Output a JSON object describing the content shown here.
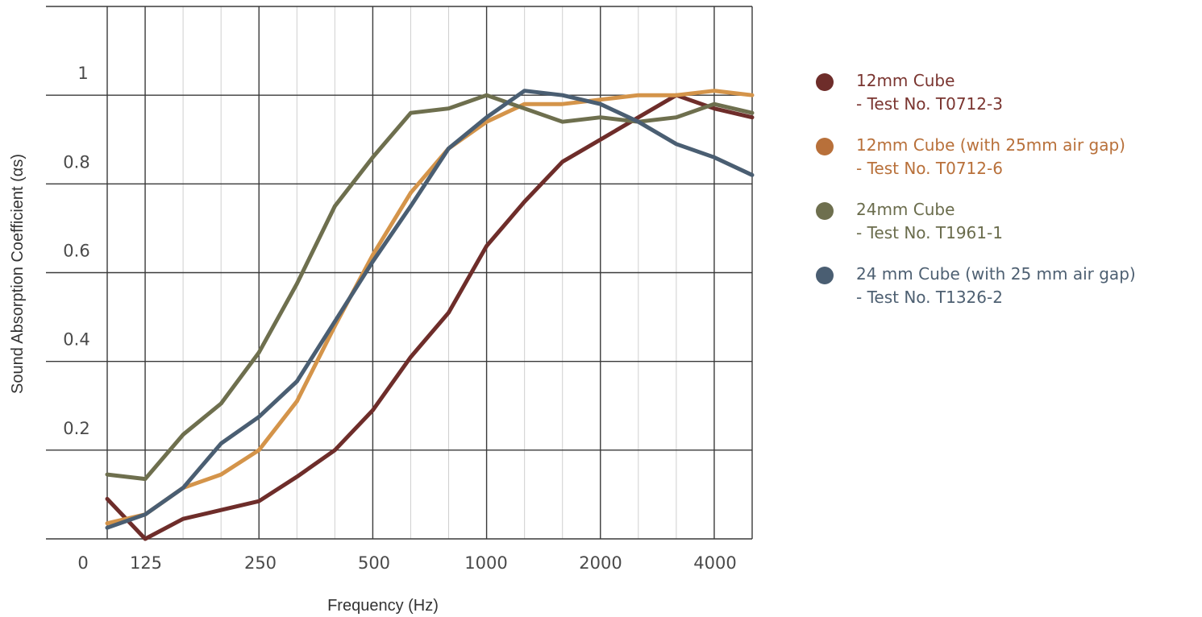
{
  "chart_data": {
    "type": "line",
    "title": "",
    "xlabel": "Frequency (Hz)",
    "ylabel": "Sound Absorption Coefficient (αs)",
    "x": [
      100,
      125,
      160,
      200,
      250,
      315,
      400,
      500,
      630,
      800,
      1000,
      1250,
      1600,
      2000,
      2500,
      3150,
      4000,
      5000
    ],
    "x_scale": "log (one-third octave bands)",
    "xticks": [
      "0",
      "125",
      "250",
      "500",
      "1000",
      "2000",
      "4000"
    ],
    "yticks": [
      "0.2",
      "0.4",
      "0.6",
      "0.8",
      "1",
      "1.2"
    ],
    "ylim": [
      0,
      1.2
    ],
    "grid": true,
    "legend_position": "right",
    "series": [
      {
        "name": "12mm Cube",
        "test": "- Test No. T0712-3",
        "color": "#6e2d2a",
        "values": [
          0.09,
          0.0,
          0.045,
          0.065,
          0.085,
          0.14,
          0.2,
          0.29,
          0.41,
          0.51,
          0.66,
          0.76,
          0.85,
          0.9,
          0.95,
          1.0,
          0.97,
          0.95
        ]
      },
      {
        "name": "12mm Cube (with 25mm air gap)",
        "test": "- Test No. T0712-6",
        "color": "#d4944a",
        "values": [
          0.035,
          0.055,
          0.115,
          0.145,
          0.2,
          0.31,
          0.48,
          0.64,
          0.78,
          0.88,
          0.94,
          0.98,
          0.98,
          0.99,
          1.0,
          1.0,
          1.01,
          1.0
        ]
      },
      {
        "name": "24mm Cube",
        "test": "- Test No. T1961-1",
        "color": "#6e6f4e",
        "values": [
          0.145,
          0.135,
          0.235,
          0.305,
          0.42,
          0.575,
          0.75,
          0.86,
          0.96,
          0.97,
          1.0,
          0.97,
          0.94,
          0.95,
          0.94,
          0.95,
          0.98,
          0.96
        ]
      },
      {
        "name": "24 mm Cube (with 25 mm air gap)",
        "test": "- Test No. T1326-2",
        "color": "#4a5e72",
        "values": [
          0.025,
          0.055,
          0.115,
          0.215,
          0.275,
          0.355,
          0.49,
          0.625,
          0.75,
          0.88,
          0.95,
          1.01,
          1.0,
          0.98,
          0.94,
          0.89,
          0.86,
          0.82
        ]
      }
    ]
  },
  "legend": {
    "items": [
      {
        "name": "12mm Cube",
        "test": "- Test No. T0712-3",
        "text_color": "#7a3530",
        "dot_color": "#6e2d2a"
      },
      {
        "name": "12mm Cube (with 25mm air gap)",
        "test": "- Test No. T0712-6",
        "text_color": "#b8703a",
        "dot_color": "#b8703a"
      },
      {
        "name": "24mm Cube",
        "test": "- Test No. T1961-1",
        "text_color": "#6a6c4c",
        "dot_color": "#6e6f4e"
      },
      {
        "name": "24 mm Cube (with 25 mm air gap)",
        "test": "- Test No. T1326-2",
        "text_color": "#4e6072",
        "dot_color": "#4a5e72"
      }
    ]
  }
}
